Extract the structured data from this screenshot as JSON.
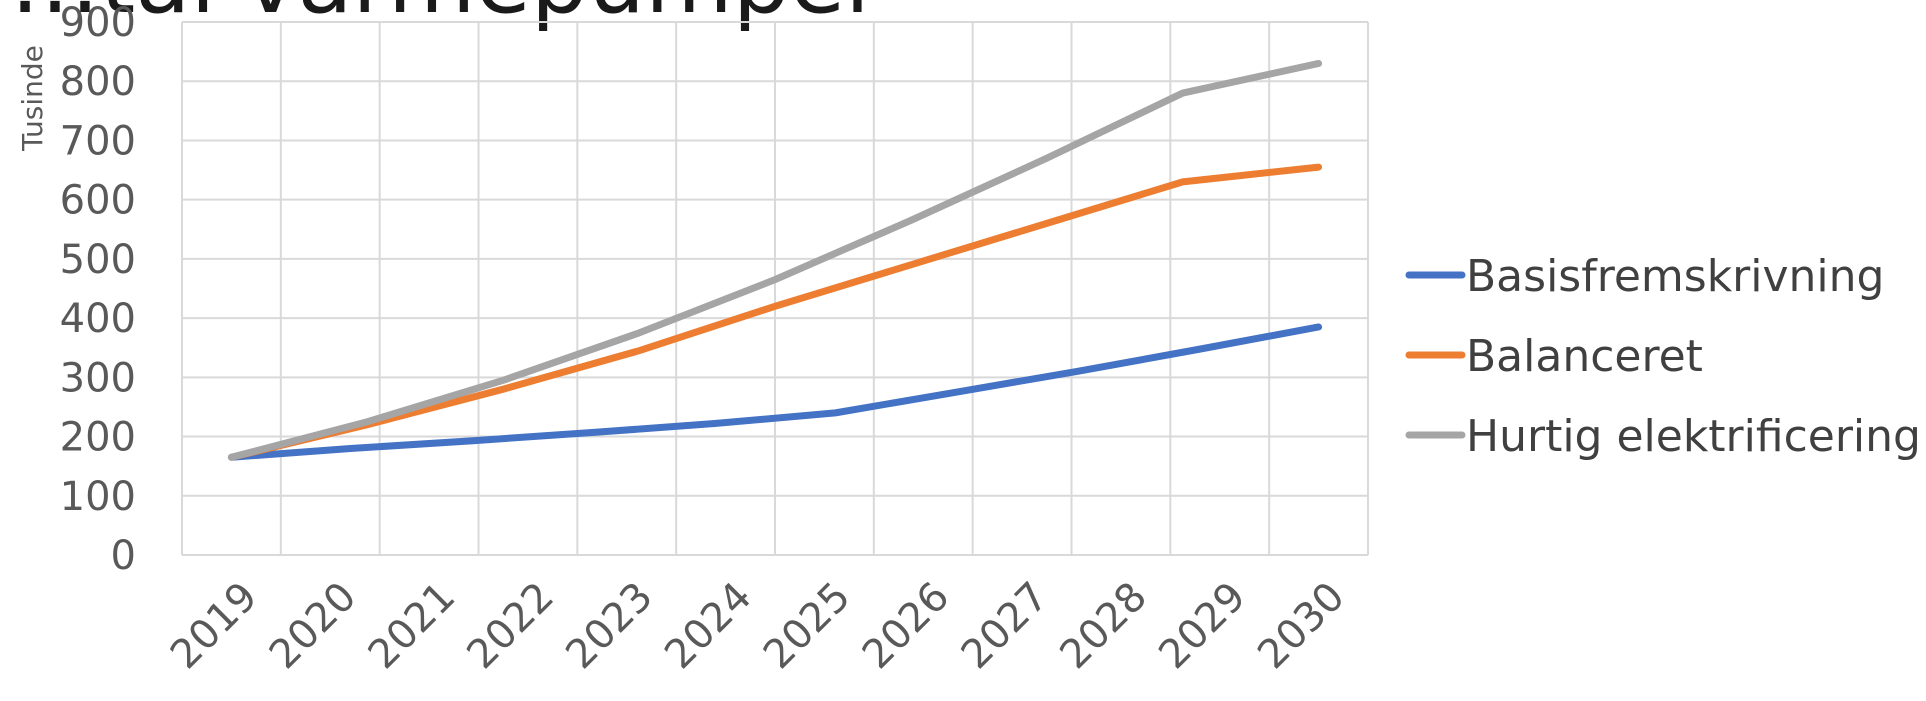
{
  "page_title": "…tal varmepumper",
  "chart_data": {
    "type": "line",
    "title": "…tal varmepumper",
    "xlabel": "",
    "ylabel": "Tusinde",
    "categories": [
      "2019",
      "2020",
      "2021",
      "2022",
      "2023",
      "2024",
      "2025",
      "2026",
      "2027",
      "2028",
      "2029",
      "2030"
    ],
    "ylim": [
      0,
      900
    ],
    "yticks": [
      0,
      100,
      200,
      300,
      400,
      500,
      600,
      700,
      800,
      900
    ],
    "grid": true,
    "legend_position": "right",
    "series": [
      {
        "name": "Basisfremskrivning",
        "color": "#4472C4",
        "values": [
          165,
          180,
          193,
          207,
          222,
          240,
          275,
          310,
          347,
          385,
          null,
          null
        ]
      },
      {
        "name": "Balanceret",
        "color": "#ED7D31",
        "values": [
          165,
          220,
          280,
          345,
          420,
          490,
          560,
          630,
          655,
          null,
          null,
          null
        ]
      },
      {
        "name": "Hurtig elektrificering",
        "color": "#A5A5A5",
        "values": [
          165,
          225,
          295,
          375,
          465,
          565,
          670,
          780,
          830,
          null,
          null,
          null
        ]
      }
    ]
  }
}
